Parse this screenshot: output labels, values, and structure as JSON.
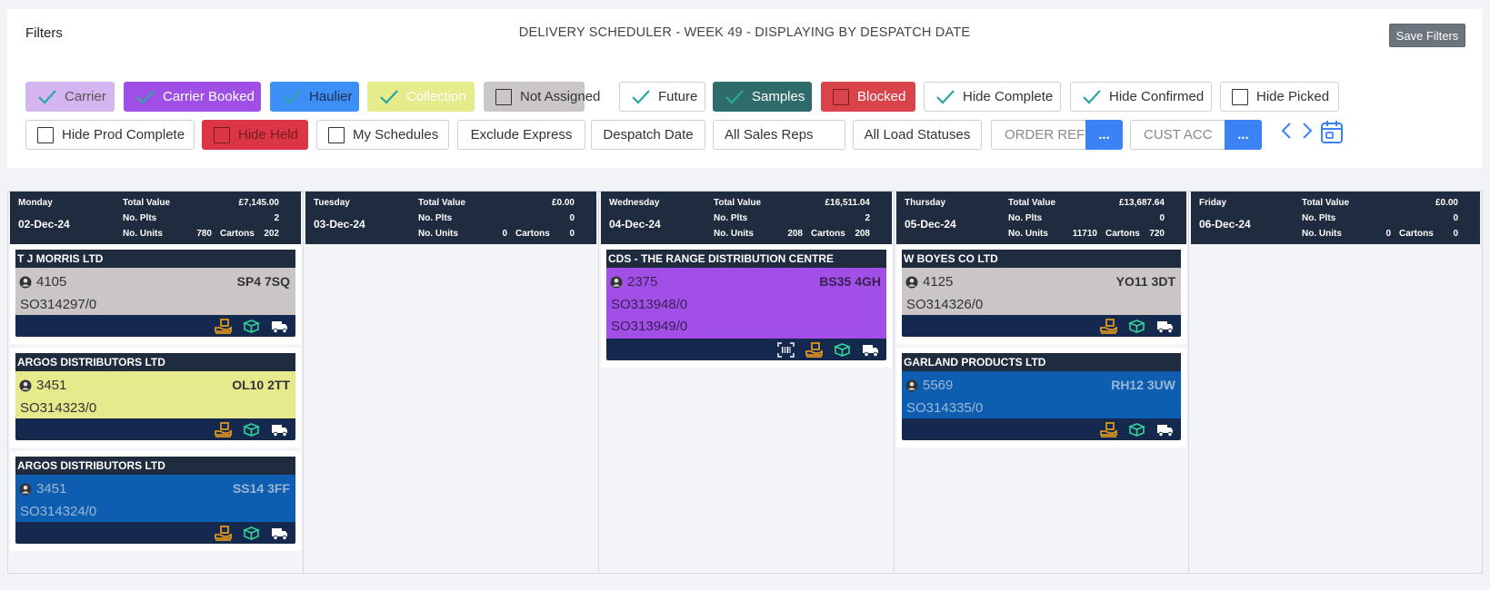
{
  "header": {
    "filters_label": "Filters",
    "title": "DELIVERY SCHEDULER - WEEK 49 - DISPLAYING BY DESPATCH DATE",
    "save_filters_label": "Save Filters"
  },
  "filters": {
    "carrier": {
      "label": "Carrier",
      "checked": true,
      "bg": "#d5b5f0",
      "color": "#555"
    },
    "carrier_booked": {
      "label": "Carrier Booked",
      "checked": true,
      "bg": "#9f4fe6",
      "color": "#ffffff"
    },
    "haulier": {
      "label": "Haulier",
      "checked": true,
      "bg": "#3d8ef5",
      "color": "#1e2f55"
    },
    "collection": {
      "label": "Collection",
      "checked": true,
      "bg": "#e6ec8b",
      "color": "#ffffff"
    },
    "not_assigned": {
      "label": "Not Assigned",
      "checked": false,
      "bg": "#cbc7c7",
      "color": "#333"
    },
    "future": {
      "label": "Future",
      "checked": true,
      "bg": "#ffffff",
      "color": "#333"
    },
    "samples": {
      "label": "Samples",
      "checked": true,
      "bg": "#2f6b6b",
      "color": "#ffffff"
    },
    "blocked": {
      "label": "Blocked",
      "checked": false,
      "bg": "#d9444a",
      "color": "#ffffff"
    },
    "hide_complete": {
      "label": "Hide Complete",
      "checked": true,
      "bg": "#ffffff",
      "color": "#333"
    },
    "hide_confirmed": {
      "label": "Hide Confirmed",
      "checked": true,
      "bg": "#ffffff",
      "color": "#333"
    },
    "hide_picked": {
      "label": "Hide Picked",
      "checked": false,
      "bg": "#ffffff",
      "color": "#333"
    },
    "hide_prod_complete": {
      "label": "Hide Prod Complete",
      "checked": false,
      "bg": "#ffffff",
      "color": "#333"
    },
    "hide_held": {
      "label": "Hide Held",
      "checked": false,
      "bg": "#dc3545",
      "color": "#7a1a20"
    },
    "my_schedules": {
      "label": "My Schedules",
      "checked": false,
      "bg": "#ffffff",
      "color": "#333"
    },
    "exclude_express": {
      "label": "Exclude Express"
    },
    "despatch_date": {
      "label": "Despatch Date"
    },
    "all_sales_reps": {
      "label": "All Sales Reps"
    },
    "all_load_statuses": {
      "label": "All Load Statuses"
    },
    "order_ref_placeholder": "ORDER REF",
    "cust_acc_placeholder": "CUST ACC",
    "dots_label": "..."
  },
  "icons": {
    "check": "check-icon",
    "prev": "chevron-left-icon",
    "next": "chevron-right-icon",
    "calendar": "calendar-icon",
    "user": "user-circle-icon",
    "hand": "hand-package-icon",
    "box": "box-icon",
    "truck": "truck-icon",
    "barcode": "barcode-scan-icon"
  },
  "stat_labels": {
    "total_value": "Total Value",
    "no_plts": "No. Plts",
    "no_units": "No. Units",
    "cartons": "Cartons"
  },
  "days": [
    {
      "day": "Monday",
      "date": "02-Dec-24",
      "total_value": "£7,145.00",
      "plts": "2",
      "units": "780",
      "cartons": "202",
      "cards": [
        {
          "customer": "T J MORRIS LTD",
          "account": "4105",
          "postcode": "SP4 7SQ",
          "orders": [
            "SO314297/0"
          ],
          "bg": "#cbc6c6",
          "fg": "#333333"
        },
        {
          "customer": "ARGOS DISTRIBUTORS LTD",
          "account": "3451",
          "postcode": "OL10 2TT",
          "orders": [
            "SO314323/0"
          ],
          "bg": "#e6ea8d",
          "fg": "#333333"
        },
        {
          "customer": "ARGOS DISTRIBUTORS LTD",
          "account": "3451",
          "postcode": "SS14 3FF",
          "orders": [
            "SO314324/0"
          ],
          "bg": "#0d5eb0",
          "fg": "#9bb6d6"
        }
      ]
    },
    {
      "day": "Tuesday",
      "date": "03-Dec-24",
      "total_value": "£0.00",
      "plts": "0",
      "units": "0",
      "cartons": "0",
      "cards": []
    },
    {
      "day": "Wednesday",
      "date": "04-Dec-24",
      "total_value": "£16,511.04",
      "plts": "2",
      "units": "208",
      "cartons": "208",
      "cards": [
        {
          "customer": "CDS - THE RANGE DISTRIBUTION CENTRE",
          "account": "2375",
          "postcode": "BS35 4GH",
          "orders": [
            "SO313948/0",
            "SO313949/0"
          ],
          "bg": "#a14fe6",
          "fg": "#3a1f55"
        }
      ]
    },
    {
      "day": "Thursday",
      "date": "05-Dec-24",
      "total_value": "£13,687.64",
      "plts": "0",
      "units": "11710",
      "cartons": "720",
      "cards": [
        {
          "customer": "W BOYES CO LTD",
          "account": "4125",
          "postcode": "YO11 3DT",
          "orders": [
            "SO314326/0"
          ],
          "bg": "#cbc6c6",
          "fg": "#333333"
        },
        {
          "customer": "GARLAND PRODUCTS LTD",
          "account": "5569",
          "postcode": "RH12 3UW",
          "orders": [
            "SO314335/0"
          ],
          "bg": "#0d5eb0",
          "fg": "#9bb6d6"
        }
      ]
    },
    {
      "day": "Friday",
      "date": "06-Dec-24",
      "total_value": "£0.00",
      "plts": "0",
      "units": "0",
      "cartons": "0",
      "cards": []
    }
  ]
}
